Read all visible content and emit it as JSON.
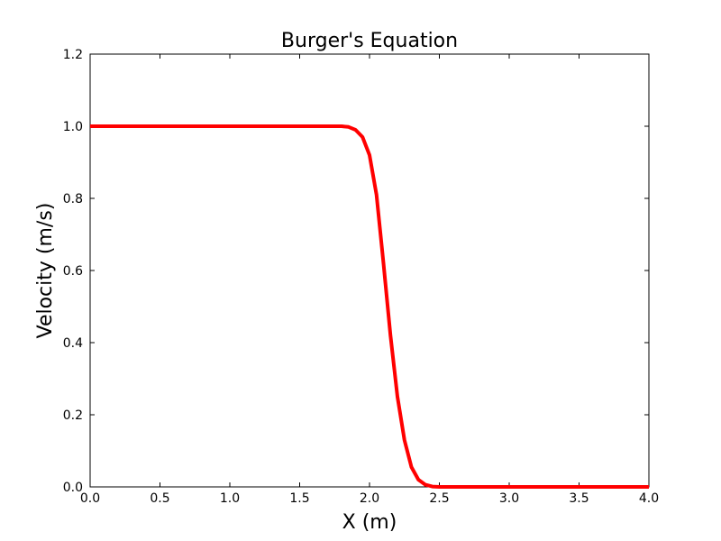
{
  "chart_data": {
    "type": "line",
    "title": "Burger's Equation",
    "xlabel": "X (m)",
    "ylabel": "Velocity (m/s)",
    "xlim": [
      0.0,
      4.0
    ],
    "ylim": [
      0.0,
      1.2
    ],
    "xticks": [
      "0.0",
      "0.5",
      "1.0",
      "1.5",
      "2.0",
      "2.5",
      "3.0",
      "3.5",
      "4.0"
    ],
    "yticks": [
      "0.0",
      "0.2",
      "0.4",
      "0.6",
      "0.8",
      "1.0",
      "1.2"
    ],
    "grid": false,
    "series": [
      {
        "color": "#ff0000",
        "x": [
          0.0,
          0.5,
          1.0,
          1.5,
          1.75,
          1.8,
          1.85,
          1.9,
          1.95,
          2.0,
          2.05,
          2.1,
          2.15,
          2.2,
          2.25,
          2.3,
          2.35,
          2.4,
          2.45,
          2.5,
          3.0,
          3.5,
          4.0
        ],
        "y": [
          1.0,
          1.0,
          1.0,
          1.0,
          1.0,
          1.0,
          0.998,
          0.99,
          0.97,
          0.92,
          0.81,
          0.62,
          0.42,
          0.25,
          0.13,
          0.055,
          0.02,
          0.006,
          0.001,
          0.0,
          0.0,
          0.0,
          0.0
        ]
      }
    ]
  }
}
